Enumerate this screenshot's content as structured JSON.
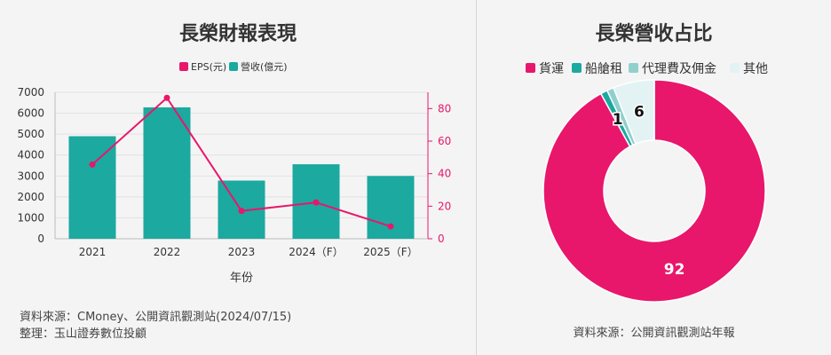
{
  "left": {
    "title": "長榮財報表現",
    "source_line1": "資料來源：CMoney、公開資訊觀測站(2024/07/15)",
    "source_line2": "整理：玉山證券數位投顧"
  },
  "right": {
    "title": "長榮營收占比",
    "source": "資料來源：公開資訊觀測站年報"
  },
  "colors": {
    "eps": "#e8176b",
    "revenue": "#1ba9a0",
    "pale": "#e3f3f3",
    "light_teal": "#8fd0cc"
  },
  "chart_data": [
    {
      "type": "bar",
      "categories": [
        "2021",
        "2022",
        "2023",
        "2024（F）",
        "2025（F）"
      ],
      "series": [
        {
          "name": "營收(億元)",
          "type": "bar",
          "axis": "left",
          "values": [
            4900,
            6280,
            2780,
            3560,
            3000
          ]
        },
        {
          "name": "EPS(元)",
          "type": "line",
          "axis": "right",
          "values": [
            45.6,
            86.6,
            17.1,
            22.3,
            7.6
          ]
        }
      ],
      "xlabel": "年份",
      "ylim_left": [
        0,
        7000
      ],
      "yticks_left": [
        "0",
        "1000",
        "2000",
        "3000",
        "4000",
        "5000",
        "6000",
        "7000"
      ],
      "ylim_right": [
        0,
        90
      ],
      "yticks_right": [
        "0",
        "20",
        "40",
        "60",
        "80"
      ],
      "legend_position": "top"
    },
    {
      "type": "pie",
      "donut": true,
      "slices": [
        {
          "label": "貨運",
          "value": 92,
          "value_label": "92"
        },
        {
          "label": "船艙租",
          "value": 1,
          "value_label": "1"
        },
        {
          "label": "代理費及佣金",
          "value": 1,
          "value_label": ""
        },
        {
          "label": "其他",
          "value": 6,
          "value_label": "6"
        }
      ],
      "legend_position": "top"
    }
  ]
}
